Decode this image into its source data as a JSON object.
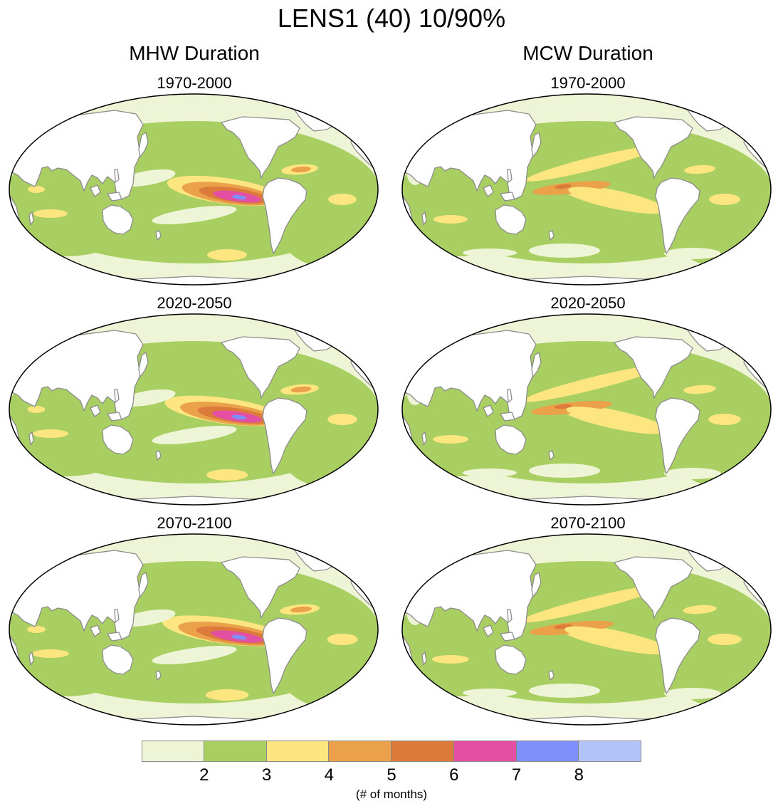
{
  "title": "LENS1 (40) 10/90%",
  "columns": [
    {
      "heading": "MHW Duration"
    },
    {
      "heading": "MCW Duration"
    }
  ],
  "panels": [
    {
      "id": "mhw-1970",
      "period": "1970-2000",
      "variable": "MHW"
    },
    {
      "id": "mcw-1970",
      "period": "1970-2000",
      "variable": "MCW"
    },
    {
      "id": "mhw-2020",
      "period": "2020-2050",
      "variable": "MHW"
    },
    {
      "id": "mcw-2020",
      "period": "2020-2050",
      "variable": "MCW"
    },
    {
      "id": "mhw-2070",
      "period": "2070-2100",
      "variable": "MHW"
    },
    {
      "id": "mcw-2070",
      "period": "2070-2100",
      "variable": "MCW"
    }
  ],
  "colors": {
    "level_1": "#eef5d6",
    "level_2": "#a9cf63",
    "level_3": "#fde580",
    "level_4": "#eba04a",
    "level_5": "#db7a3b",
    "level_6": "#e24fa3",
    "level_7": "#7f8ffb",
    "level_8": "#b3c4fb",
    "land": "#ffffff",
    "coast": "#8c8c8c"
  },
  "colorbar": {
    "levels": [
      {
        "color": "#eef5d6"
      },
      {
        "color": "#a9cf63"
      },
      {
        "color": "#fde580"
      },
      {
        "color": "#eba04a"
      },
      {
        "color": "#db7a3b"
      },
      {
        "color": "#e24fa3"
      },
      {
        "color": "#7f8ffb"
      },
      {
        "color": "#b3c4fb"
      }
    ],
    "ticks": [
      "2",
      "3",
      "4",
      "5",
      "6",
      "7",
      "8"
    ],
    "unit": "(# of months)"
  }
}
